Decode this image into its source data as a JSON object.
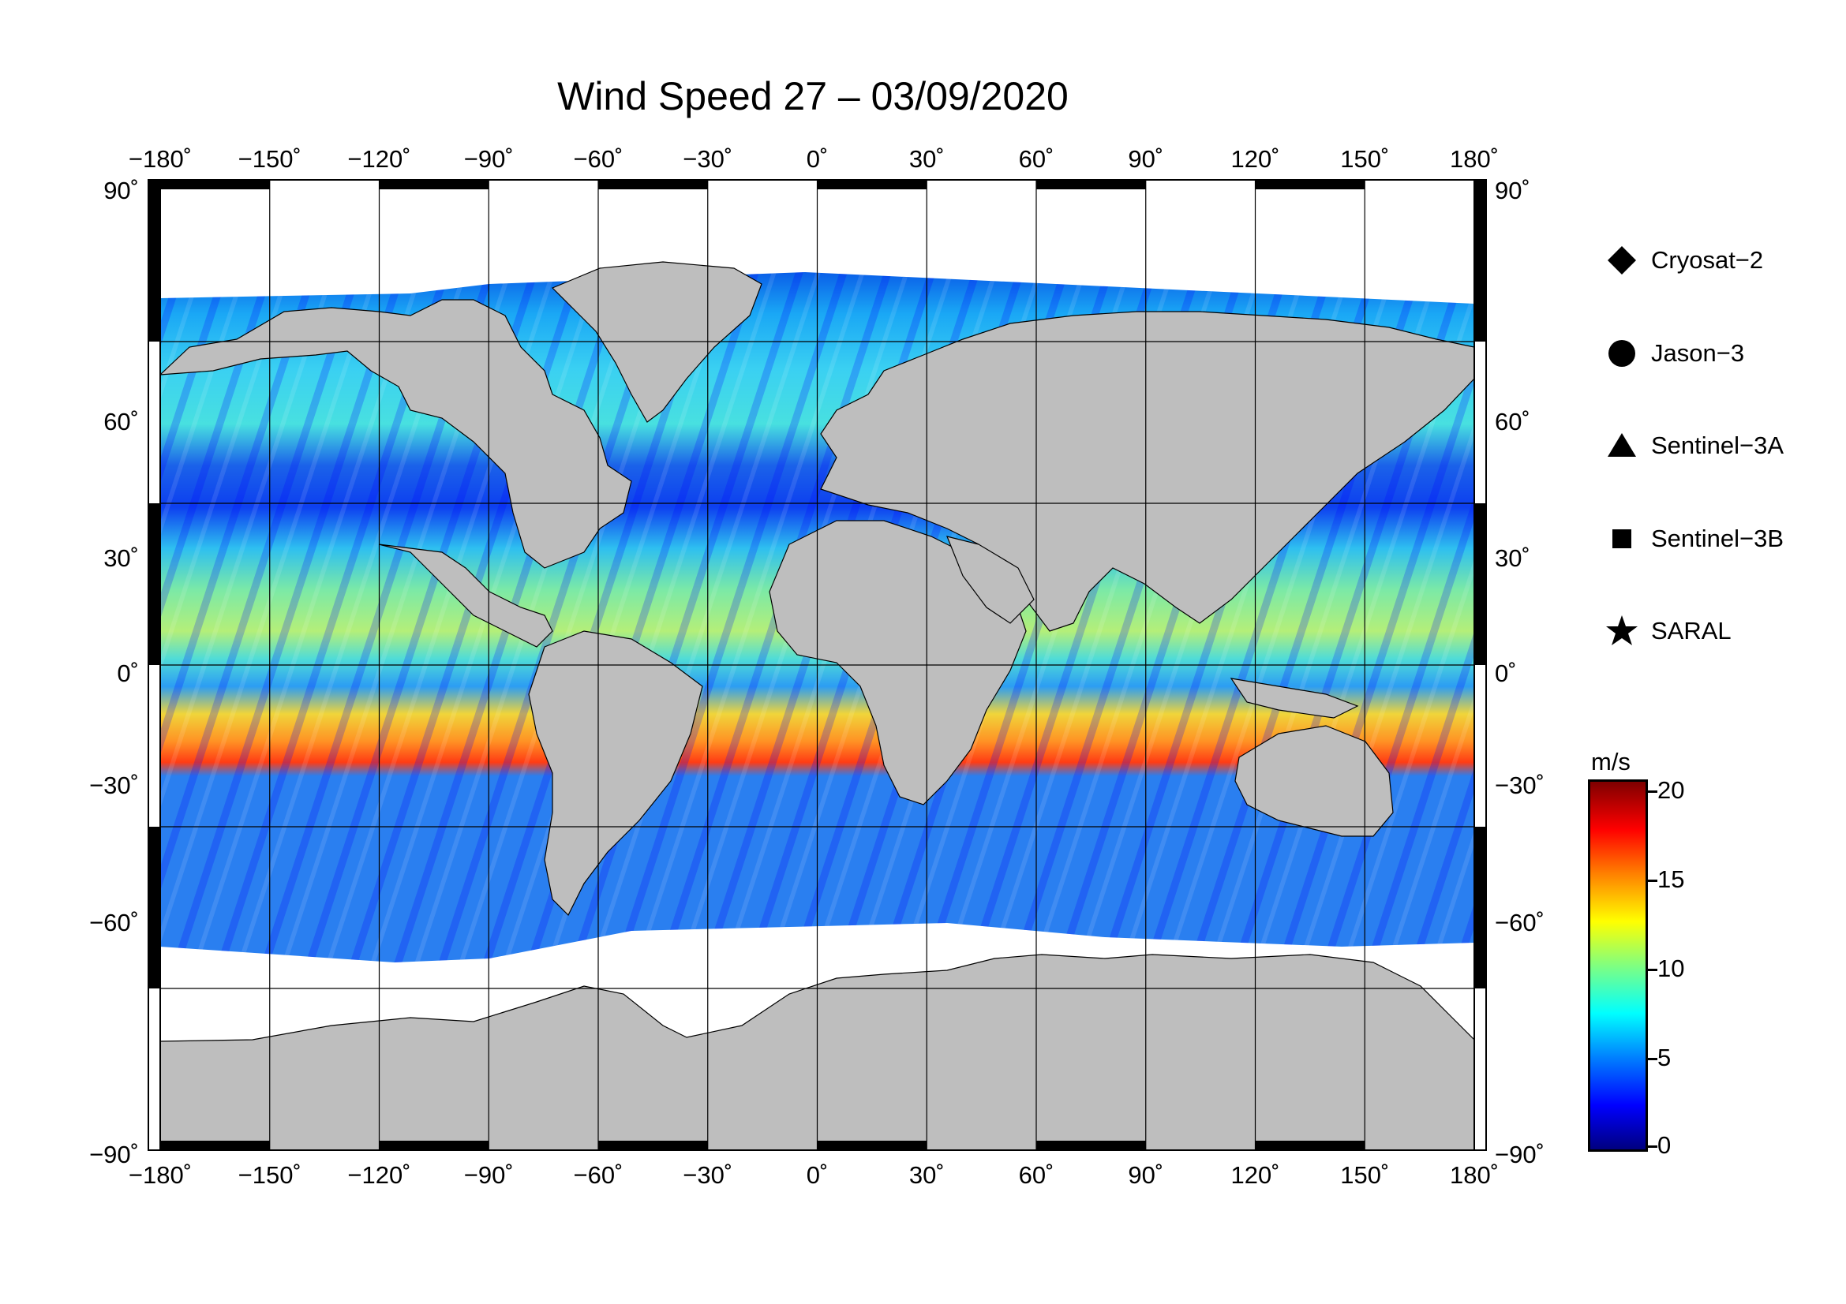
{
  "title": "Wind Speed 27 – 03/09/2020",
  "map": {
    "projection": "equirectangular",
    "lon_range": [
      -180,
      180
    ],
    "lat_range": [
      -90,
      90
    ],
    "lon_ticks": [
      "−180˚",
      "−150˚",
      "−120˚",
      "−90˚",
      "−60˚",
      "−30˚",
      "0˚",
      "30˚",
      "60˚",
      "90˚",
      "120˚",
      "150˚",
      "180˚"
    ],
    "lat_ticks": [
      "90˚",
      "60˚",
      "30˚",
      "0˚",
      "−30˚",
      "−60˚",
      "−90˚"
    ],
    "grid": true,
    "land_color": "#bebebe",
    "no_data_color": "#ffffff"
  },
  "legend": {
    "items": [
      {
        "label": "Cryosat−2",
        "icon": "diamond-icon"
      },
      {
        "label": "Jason−3",
        "icon": "circle-icon"
      },
      {
        "label": "Sentinel−3A",
        "icon": "triangle-icon"
      },
      {
        "label": "Sentinel−3B",
        "icon": "square-icon"
      },
      {
        "label": "SARAL",
        "icon": "star-icon"
      }
    ]
  },
  "colorbar": {
    "unit": "m/s",
    "min": 0,
    "max": 20,
    "ticks": [
      "20",
      "15",
      "10",
      "5",
      "0"
    ],
    "colors": [
      "#00007f",
      "#0000ff",
      "#0080ff",
      "#00ffff",
      "#80ff80",
      "#ffff00",
      "#ff8000",
      "#ff0000",
      "#7f0000"
    ]
  }
}
